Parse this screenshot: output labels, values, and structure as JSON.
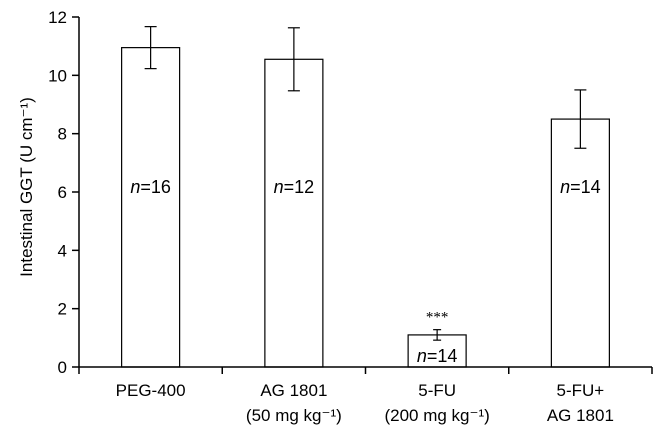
{
  "chart_data": {
    "type": "bar",
    "ylabel": "Intestinal GGT (U cm⁻¹)",
    "ylim": [
      0,
      12
    ],
    "yticks": [
      0,
      2,
      4,
      6,
      8,
      10,
      12
    ],
    "grid": false,
    "bar_color": "#ffffff",
    "edge_color": "#000000",
    "categories": [
      {
        "line1": "PEG-400",
        "line2": ""
      },
      {
        "line1": "AG 1801",
        "line2": "(50 mg kg⁻¹)"
      },
      {
        "line1": "5-FU",
        "line2": "(200 mg kg⁻¹)"
      },
      {
        "line1": "5-FU+",
        "line2": "AG 1801"
      }
    ],
    "values": [
      10.95,
      10.55,
      1.1,
      8.5
    ],
    "errors": [
      0.72,
      1.08,
      0.18,
      1.0
    ],
    "n_labels": [
      "=16",
      "=12",
      "=14",
      "=14"
    ],
    "n_prefix": "n",
    "significance": [
      "",
      "",
      "***",
      ""
    ]
  }
}
